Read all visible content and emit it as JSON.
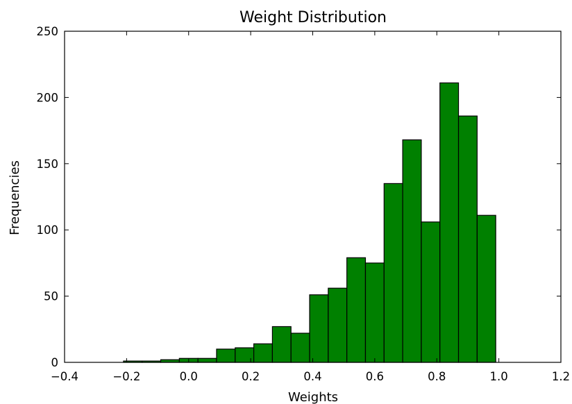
{
  "chart_data": {
    "type": "bar",
    "title": "Weight Distribution",
    "xlabel": "Weights",
    "ylabel": "Frequencies",
    "xlim": [
      -0.4,
      1.2
    ],
    "ylim": [
      0,
      250
    ],
    "x_ticks": [
      -0.4,
      -0.2,
      0.0,
      0.2,
      0.4,
      0.6,
      0.8,
      1.0,
      1.2
    ],
    "x_tick_labels": [
      "−0.4",
      "−0.2",
      "0.0",
      "0.2",
      "0.4",
      "0.6",
      "0.8",
      "1.0",
      "1.2"
    ],
    "y_ticks": [
      0,
      50,
      100,
      150,
      200,
      250
    ],
    "y_tick_labels": [
      "0",
      "50",
      "100",
      "150",
      "200",
      "250"
    ],
    "bar_color": "#008000",
    "edge_color": "#000000",
    "grid": false,
    "legend": "none",
    "bins": [
      {
        "x0": -0.21,
        "x1": -0.15,
        "value": 1
      },
      {
        "x0": -0.15,
        "x1": -0.09,
        "value": 1
      },
      {
        "x0": -0.09,
        "x1": -0.03,
        "value": 2
      },
      {
        "x0": -0.03,
        "x1": 0.03,
        "value": 3
      },
      {
        "x0": 0.03,
        "x1": 0.09,
        "value": 3
      },
      {
        "x0": 0.09,
        "x1": 0.15,
        "value": 10
      },
      {
        "x0": 0.15,
        "x1": 0.21,
        "value": 11
      },
      {
        "x0": 0.21,
        "x1": 0.27,
        "value": 14
      },
      {
        "x0": 0.27,
        "x1": 0.33,
        "value": 27
      },
      {
        "x0": 0.33,
        "x1": 0.39,
        "value": 22
      },
      {
        "x0": 0.39,
        "x1": 0.45,
        "value": 51
      },
      {
        "x0": 0.45,
        "x1": 0.51,
        "value": 56
      },
      {
        "x0": 0.51,
        "x1": 0.57,
        "value": 79
      },
      {
        "x0": 0.57,
        "x1": 0.63,
        "value": 75
      },
      {
        "x0": 0.63,
        "x1": 0.69,
        "value": 135
      },
      {
        "x0": 0.69,
        "x1": 0.75,
        "value": 168
      },
      {
        "x0": 0.75,
        "x1": 0.81,
        "value": 106
      },
      {
        "x0": 0.81,
        "x1": 0.87,
        "value": 211
      },
      {
        "x0": 0.87,
        "x1": 0.93,
        "value": 186
      },
      {
        "x0": 0.93,
        "x1": 0.99,
        "value": 111
      }
    ]
  }
}
